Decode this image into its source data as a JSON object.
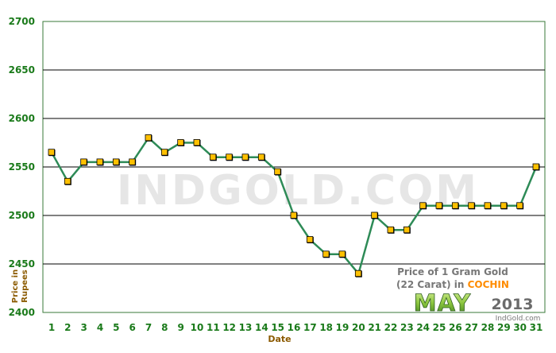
{
  "chart_data": {
    "type": "line",
    "xlabel": "Date",
    "ylabel": "Price in Rupees",
    "x": [
      1,
      2,
      3,
      4,
      5,
      6,
      7,
      8,
      9,
      10,
      11,
      12,
      13,
      14,
      15,
      16,
      17,
      18,
      19,
      20,
      21,
      22,
      23,
      24,
      25,
      26,
      27,
      28,
      29,
      30,
      31
    ],
    "series": [
      {
        "values": [
          2565,
          2535,
          2555,
          2555,
          2555,
          2555,
          2580,
          2565,
          2575,
          2575,
          2560,
          2560,
          2560,
          2560,
          2545,
          2500,
          2475,
          2460,
          2460,
          2440,
          2500,
          2485,
          2485,
          2510,
          2510,
          2510,
          2510,
          2510,
          2510,
          2510,
          2550
        ]
      }
    ],
    "ylim": [
      2400,
      2700
    ],
    "yticks": [
      2400,
      2450,
      2500,
      2550,
      2600,
      2650,
      2700
    ],
    "grid": "horizontal",
    "colors": {
      "line": "#2e8b57",
      "marker_fill": "#ffc000",
      "marker_edge": "#000000",
      "tick_labels": "#1a7a1a",
      "axis_title": "#8b5a00",
      "grid": "#000000",
      "frame": "#3a7a3a",
      "watermark": "#e6e6e6"
    },
    "watermark": "INDGOLD.COM",
    "annotation": {
      "line1": "Price of 1 Gram Gold",
      "line2_prefix": "(22 Carat) in ",
      "city": "COCHIN",
      "month": "MAY",
      "year": "2013",
      "site": "IndGold.com"
    }
  }
}
